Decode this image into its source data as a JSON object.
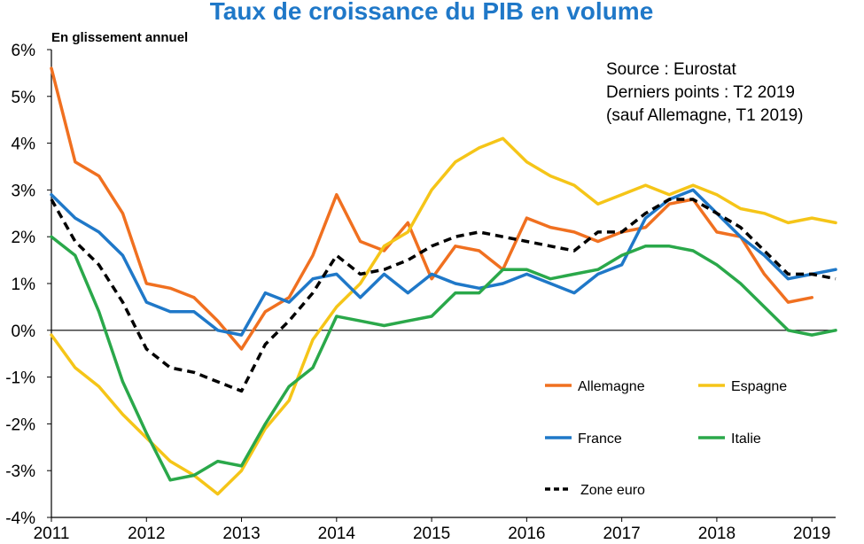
{
  "chart_data": {
    "type": "line",
    "title": "Taux de croissance du PIB en volume",
    "subtitle": "En glissement annuel",
    "xlabel": "",
    "ylabel": "",
    "x_ticks": [
      "2011",
      "2012",
      "2013",
      "2014",
      "2015",
      "2016",
      "2017",
      "2018",
      "2019"
    ],
    "y_ticks": [
      "6%",
      "5%",
      "4%",
      "3%",
      "2%",
      "1%",
      "0%",
      "-1%",
      "-2%",
      "-3%",
      "-4%"
    ],
    "xlim": [
      2011.0,
      2019.25
    ],
    "ylim": [
      -4,
      6
    ],
    "grid": false,
    "legend_position": "bottom-right",
    "annotation": {
      "line1": "Source : Eurostat",
      "line2": "Derniers points : T2 2019",
      "line3": "(sauf Allemagne,  T1 2019)"
    },
    "series": [
      {
        "name": "Allemagne",
        "color": "#f07020",
        "style": "solid",
        "x": [
          2011.0,
          2011.25,
          2011.5,
          2011.75,
          2012.0,
          2012.25,
          2012.5,
          2012.75,
          2013.0,
          2013.25,
          2013.5,
          2013.75,
          2014.0,
          2014.25,
          2014.5,
          2014.75,
          2015.0,
          2015.25,
          2015.5,
          2015.75,
          2016.0,
          2016.25,
          2016.5,
          2016.75,
          2017.0,
          2017.25,
          2017.5,
          2017.75,
          2018.0,
          2018.25,
          2018.5,
          2018.75,
          2019.0
        ],
        "values": [
          5.6,
          3.6,
          3.3,
          2.5,
          1.0,
          0.9,
          0.7,
          0.2,
          -0.4,
          0.4,
          0.7,
          1.6,
          2.9,
          1.9,
          1.7,
          2.3,
          1.1,
          1.8,
          1.7,
          1.3,
          2.4,
          2.2,
          2.1,
          1.9,
          2.1,
          2.2,
          2.7,
          2.8,
          2.1,
          2.0,
          1.2,
          0.6,
          0.7
        ]
      },
      {
        "name": "Espagne",
        "color": "#f5c518",
        "style": "solid",
        "x": [
          2011.0,
          2011.25,
          2011.5,
          2011.75,
          2012.0,
          2012.25,
          2012.5,
          2012.75,
          2013.0,
          2013.25,
          2013.5,
          2013.75,
          2014.0,
          2014.25,
          2014.5,
          2014.75,
          2015.0,
          2015.25,
          2015.5,
          2015.75,
          2016.0,
          2016.25,
          2016.5,
          2016.75,
          2017.0,
          2017.25,
          2017.5,
          2017.75,
          2018.0,
          2018.25,
          2018.5,
          2018.75,
          2019.0,
          2019.25
        ],
        "values": [
          -0.1,
          -0.8,
          -1.2,
          -1.8,
          -2.3,
          -2.8,
          -3.1,
          -3.5,
          -3.0,
          -2.1,
          -1.5,
          -0.2,
          0.5,
          1.0,
          1.8,
          2.1,
          3.0,
          3.6,
          3.9,
          4.1,
          3.6,
          3.3,
          3.1,
          2.7,
          2.9,
          3.1,
          2.9,
          3.1,
          2.9,
          2.6,
          2.5,
          2.3,
          2.4,
          2.3
        ]
      },
      {
        "name": "France",
        "color": "#1f78c8",
        "style": "solid",
        "x": [
          2011.0,
          2011.25,
          2011.5,
          2011.75,
          2012.0,
          2012.25,
          2012.5,
          2012.75,
          2013.0,
          2013.25,
          2013.5,
          2013.75,
          2014.0,
          2014.25,
          2014.5,
          2014.75,
          2015.0,
          2015.25,
          2015.5,
          2015.75,
          2016.0,
          2016.25,
          2016.5,
          2016.75,
          2017.0,
          2017.25,
          2017.5,
          2017.75,
          2018.0,
          2018.25,
          2018.5,
          2018.75,
          2019.0,
          2019.25
        ],
        "values": [
          2.9,
          2.4,
          2.1,
          1.6,
          0.6,
          0.4,
          0.4,
          0.0,
          -0.1,
          0.8,
          0.6,
          1.1,
          1.2,
          0.7,
          1.2,
          0.8,
          1.2,
          1.0,
          0.9,
          1.0,
          1.2,
          1.0,
          0.8,
          1.2,
          1.4,
          2.4,
          2.8,
          3.0,
          2.5,
          2.0,
          1.6,
          1.1,
          1.2,
          1.3
        ]
      },
      {
        "name": "Italie",
        "color": "#2aa84a",
        "style": "solid",
        "x": [
          2011.0,
          2011.25,
          2011.5,
          2011.75,
          2012.0,
          2012.25,
          2012.5,
          2012.75,
          2013.0,
          2013.25,
          2013.5,
          2013.75,
          2014.0,
          2014.25,
          2014.5,
          2014.75,
          2015.0,
          2015.25,
          2015.5,
          2015.75,
          2016.0,
          2016.25,
          2016.5,
          2016.75,
          2017.0,
          2017.25,
          2017.5,
          2017.75,
          2018.0,
          2018.25,
          2018.5,
          2018.75,
          2019.0,
          2019.25
        ],
        "values": [
          2.0,
          1.6,
          0.4,
          -1.1,
          -2.2,
          -3.2,
          -3.1,
          -2.8,
          -2.9,
          -2.0,
          -1.2,
          -0.8,
          0.3,
          0.2,
          0.1,
          0.2,
          0.3,
          0.8,
          0.8,
          1.3,
          1.3,
          1.1,
          1.2,
          1.3,
          1.6,
          1.8,
          1.8,
          1.7,
          1.4,
          1.0,
          0.5,
          0.0,
          -0.1,
          0.0
        ]
      },
      {
        "name": "Zone euro",
        "color": "#000000",
        "style": "dashed",
        "x": [
          2011.0,
          2011.25,
          2011.5,
          2011.75,
          2012.0,
          2012.25,
          2012.5,
          2012.75,
          2013.0,
          2013.25,
          2013.5,
          2013.75,
          2014.0,
          2014.25,
          2014.5,
          2014.75,
          2015.0,
          2015.25,
          2015.5,
          2015.75,
          2016.0,
          2016.25,
          2016.5,
          2016.75,
          2017.0,
          2017.25,
          2017.5,
          2017.75,
          2018.0,
          2018.25,
          2018.5,
          2018.75,
          2019.0,
          2019.25
        ],
        "values": [
          2.8,
          1.9,
          1.4,
          0.6,
          -0.4,
          -0.8,
          -0.9,
          -1.1,
          -1.3,
          -0.3,
          0.2,
          0.8,
          1.6,
          1.2,
          1.3,
          1.5,
          1.8,
          2.0,
          2.1,
          2.0,
          1.9,
          1.8,
          1.7,
          2.1,
          2.1,
          2.5,
          2.8,
          2.8,
          2.5,
          2.2,
          1.7,
          1.2,
          1.2,
          1.1
        ]
      }
    ]
  }
}
